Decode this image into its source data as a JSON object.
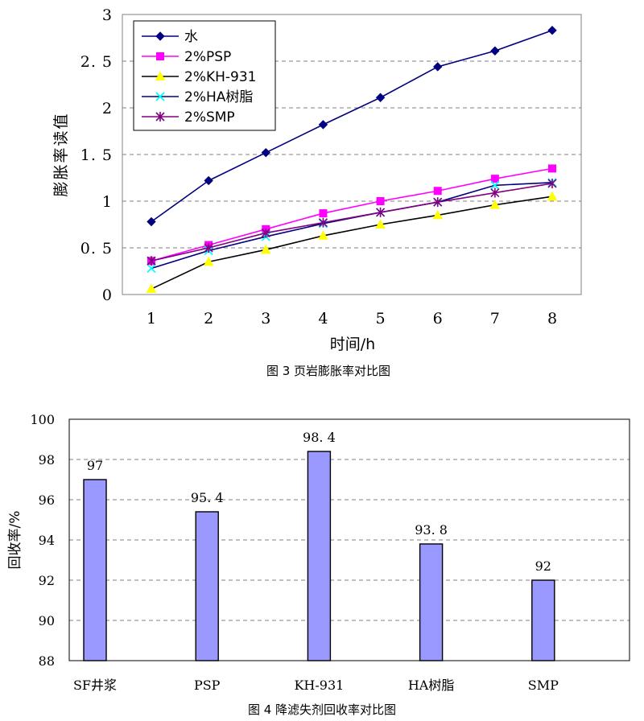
{
  "chart_data": [
    {
      "type": "line",
      "caption": "图 3 页岩膨胀率对比图",
      "xlabel": "时间/h",
      "ylabel": "膨胀率读值",
      "x": [
        1,
        2,
        3,
        4,
        5,
        6,
        7,
        8
      ],
      "xlim": [
        1,
        8
      ],
      "ylim": [
        0,
        3
      ],
      "yticks": [
        "0",
        "0. 5",
        "1",
        "1. 5",
        "2",
        "2. 5",
        "3"
      ],
      "ytick_values": [
        0,
        0.5,
        1,
        1.5,
        2,
        2.5,
        3
      ],
      "xticks": [
        "1",
        "2",
        "3",
        "4",
        "5",
        "6",
        "7",
        "8"
      ],
      "grid": "horizontal dashed",
      "legend_position": "top-left",
      "series": [
        {
          "name": "水",
          "values": [
            0.78,
            1.22,
            1.52,
            1.82,
            2.11,
            2.44,
            2.61,
            2.83
          ],
          "color": "#000080",
          "marker": "diamond"
        },
        {
          "name": "2%PSP",
          "values": [
            0.36,
            0.53,
            0.7,
            0.87,
            1.0,
            1.11,
            1.24,
            1.35
          ],
          "color": "#ff00ff",
          "marker": "square"
        },
        {
          "name": "2%KH-931",
          "values": [
            0.06,
            0.35,
            0.48,
            0.63,
            0.75,
            0.85,
            0.96,
            1.05
          ],
          "color": "#000000",
          "marker": "triangle",
          "marker_color": "#ffff00"
        },
        {
          "name": "2%HA树脂",
          "values": [
            0.28,
            0.47,
            0.62,
            0.76,
            0.88,
            0.99,
            1.17,
            1.2
          ],
          "color": "#000080",
          "marker": "x",
          "marker_color": "#00ffff"
        },
        {
          "name": "2%SMP",
          "values": [
            0.36,
            0.5,
            0.66,
            0.77,
            0.88,
            0.99,
            1.09,
            1.19
          ],
          "color": "#800080",
          "marker": "star"
        }
      ]
    },
    {
      "type": "bar",
      "caption": "图 4 降滤失剂回收率对比图",
      "xlabel": "",
      "ylabel": "回收率/%",
      "categories": [
        "SF井浆",
        "PSP",
        "KH-931",
        "HA树脂",
        "SMP"
      ],
      "values": [
        97,
        95.4,
        98.4,
        93.8,
        92
      ],
      "value_labels": [
        "97",
        "95. 4",
        "98. 4",
        "93. 8",
        "92"
      ],
      "ylim": [
        88,
        100
      ],
      "yticks": [
        "88",
        "90",
        "92",
        "94",
        "96",
        "98",
        "100"
      ],
      "ytick_values": [
        88,
        90,
        92,
        94,
        96,
        98,
        100
      ],
      "grid": "horizontal dashed",
      "bar_color": "#9999ff"
    }
  ]
}
